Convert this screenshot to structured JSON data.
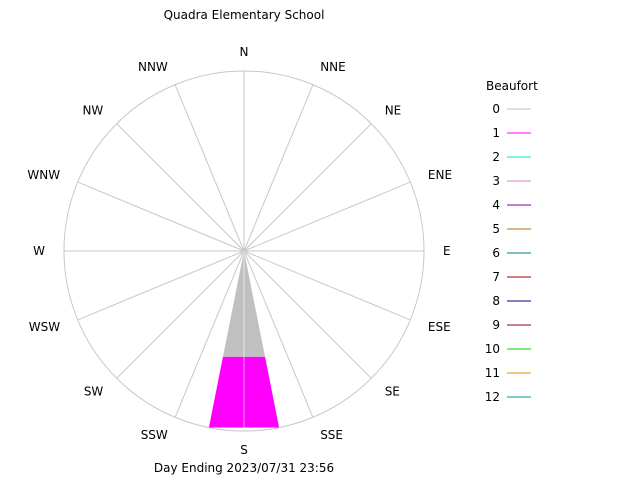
{
  "chart_data": {
    "type": "polar-bar",
    "title": "Quadra Elementary School",
    "footer": "Day Ending 2023/07/31 23:56",
    "directions": [
      "N",
      "NNE",
      "NE",
      "ENE",
      "E",
      "ESE",
      "SE",
      "SSE",
      "S",
      "SSW",
      "SW",
      "WSW",
      "W",
      "WNW",
      "NW",
      "NNW"
    ],
    "grid": true,
    "legend": {
      "title": "Beaufort",
      "placement": "right",
      "entries": [
        {
          "label": "0",
          "color": "#c0c0c0"
        },
        {
          "label": "1",
          "color": "#ff00ff"
        },
        {
          "label": "2",
          "color": "#00e0e0"
        },
        {
          "label": "3",
          "color": "#e080c0"
        },
        {
          "label": "4",
          "color": "#8000a0"
        },
        {
          "label": "5",
          "color": "#b07000"
        },
        {
          "label": "6",
          "color": "#008080"
        },
        {
          "label": "7",
          "color": "#a00000"
        },
        {
          "label": "8",
          "color": "#000080"
        },
        {
          "label": "9",
          "color": "#900020"
        },
        {
          "label": "10",
          "color": "#00d000"
        },
        {
          "label": "11",
          "color": "#e09000"
        },
        {
          "label": "12",
          "color": "#0090a0"
        }
      ]
    },
    "radial_max": 1.0,
    "series": [
      {
        "direction": "S",
        "beaufort": "0",
        "from": 0.0,
        "to": 0.6,
        "color": "#c0c0c0"
      },
      {
        "direction": "S",
        "beaufort": "1",
        "from": 0.6,
        "to": 1.0,
        "color": "#ff00ff"
      }
    ]
  }
}
